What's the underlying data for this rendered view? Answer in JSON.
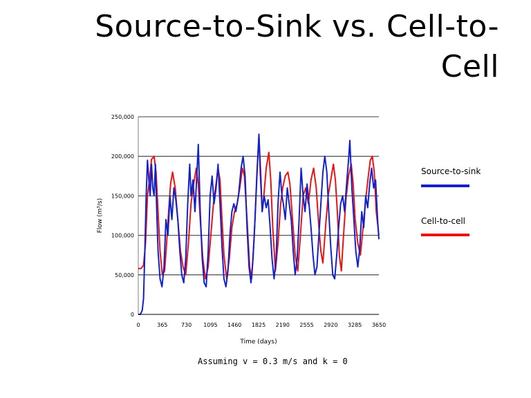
{
  "slide": {
    "title_line1": "Source-to-Sink vs. Cell-to-",
    "title_line2": "Cell",
    "caption": "Assuming v = 0.3 m/s and k = 0"
  },
  "chart_data": {
    "type": "line",
    "title": "",
    "xlabel": "Time (days)",
    "ylabel": "Flow (m³/s)",
    "xlim": [
      0,
      3650
    ],
    "ylim": [
      0,
      250000
    ],
    "x_ticks": [
      0,
      365,
      730,
      1095,
      1460,
      1825,
      2190,
      2555,
      2920,
      3285,
      3650
    ],
    "x_tick_labels": [
      "0",
      "365",
      "730",
      "1095",
      "1460",
      "1825",
      "2190",
      "2555",
      "2920",
      "3285",
      "3650"
    ],
    "y_ticks": [
      0,
      50000,
      100000,
      150000,
      200000,
      250000
    ],
    "y_tick_labels": [
      "0",
      "50,000",
      "100,000",
      "150,000",
      "200,000",
      "250,000"
    ],
    "grid": "horizontal",
    "legend_position": "right",
    "series": [
      {
        "name": "Cell-to-cell",
        "color": "#ee1111",
        "points": [
          [
            0,
            58000
          ],
          [
            40,
            58000
          ],
          [
            80,
            62000
          ],
          [
            110,
            90000
          ],
          [
            140,
            150000
          ],
          [
            170,
            170000
          ],
          [
            200,
            196000
          ],
          [
            240,
            200000
          ],
          [
            270,
            180000
          ],
          [
            300,
            130000
          ],
          [
            330,
            80000
          ],
          [
            365,
            50000
          ],
          [
            400,
            55000
          ],
          [
            430,
            90000
          ],
          [
            460,
            130000
          ],
          [
            490,
            165000
          ],
          [
            520,
            180000
          ],
          [
            560,
            160000
          ],
          [
            600,
            120000
          ],
          [
            640,
            80000
          ],
          [
            680,
            60000
          ],
          [
            720,
            50000
          ],
          [
            760,
            90000
          ],
          [
            800,
            140000
          ],
          [
            840,
            165000
          ],
          [
            880,
            185000
          ],
          [
            910,
            165000
          ],
          [
            940,
            120000
          ],
          [
            980,
            70000
          ],
          [
            1020,
            45000
          ],
          [
            1060,
            60000
          ],
          [
            1100,
            100000
          ],
          [
            1140,
            140000
          ],
          [
            1180,
            165000
          ],
          [
            1210,
            185000
          ],
          [
            1240,
            170000
          ],
          [
            1270,
            120000
          ],
          [
            1300,
            75000
          ],
          [
            1340,
            45000
          ],
          [
            1380,
            70000
          ],
          [
            1420,
            110000
          ],
          [
            1460,
            130000
          ],
          [
            1500,
            140000
          ],
          [
            1540,
            160000
          ],
          [
            1580,
            185000
          ],
          [
            1610,
            175000
          ],
          [
            1650,
            120000
          ],
          [
            1690,
            60000
          ],
          [
            1720,
            45000
          ],
          [
            1760,
            100000
          ],
          [
            1800,
            180000
          ],
          [
            1830,
            225000
          ],
          [
            1860,
            175000
          ],
          [
            1880,
            130000
          ],
          [
            1910,
            155000
          ],
          [
            1940,
            185000
          ],
          [
            1980,
            205000
          ],
          [
            2010,
            170000
          ],
          [
            2040,
            110000
          ],
          [
            2080,
            55000
          ],
          [
            2120,
            90000
          ],
          [
            2160,
            140000
          ],
          [
            2190,
            160000
          ],
          [
            2230,
            175000
          ],
          [
            2270,
            180000
          ],
          [
            2300,
            165000
          ],
          [
            2340,
            120000
          ],
          [
            2380,
            75000
          ],
          [
            2420,
            55000
          ],
          [
            2460,
            100000
          ],
          [
            2500,
            150000
          ],
          [
            2540,
            160000
          ],
          [
            2580,
            140000
          ],
          [
            2620,
            170000
          ],
          [
            2660,
            185000
          ],
          [
            2700,
            160000
          ],
          [
            2740,
            110000
          ],
          [
            2770,
            80000
          ],
          [
            2800,
            65000
          ],
          [
            2840,
            110000
          ],
          [
            2880,
            150000
          ],
          [
            2920,
            170000
          ],
          [
            2960,
            190000
          ],
          [
            2990,
            170000
          ],
          [
            3020,
            130000
          ],
          [
            3050,
            75000
          ],
          [
            3080,
            55000
          ],
          [
            3110,
            95000
          ],
          [
            3150,
            145000
          ],
          [
            3190,
            175000
          ],
          [
            3230,
            190000
          ],
          [
            3260,
            165000
          ],
          [
            3290,
            120000
          ],
          [
            3330,
            90000
          ],
          [
            3370,
            75000
          ],
          [
            3410,
            110000
          ],
          [
            3450,
            145000
          ],
          [
            3490,
            175000
          ],
          [
            3520,
            195000
          ],
          [
            3550,
            200000
          ],
          [
            3580,
            180000
          ],
          [
            3610,
            130000
          ],
          [
            3650,
            100000
          ]
        ]
      },
      {
        "name": "Source-to-sink",
        "color": "#1122cc",
        "points": [
          [
            0,
            0
          ],
          [
            30,
            0
          ],
          [
            60,
            5000
          ],
          [
            80,
            20000
          ],
          [
            100,
            80000
          ],
          [
            120,
            150000
          ],
          [
            140,
            195000
          ],
          [
            160,
            170000
          ],
          [
            180,
            150000
          ],
          [
            200,
            190000
          ],
          [
            220,
            160000
          ],
          [
            240,
            150000
          ],
          [
            260,
            190000
          ],
          [
            280,
            130000
          ],
          [
            300,
            80000
          ],
          [
            330,
            45000
          ],
          [
            360,
            35000
          ],
          [
            390,
            60000
          ],
          [
            420,
            120000
          ],
          [
            450,
            100000
          ],
          [
            480,
            150000
          ],
          [
            510,
            120000
          ],
          [
            540,
            160000
          ],
          [
            570,
            145000
          ],
          [
            600,
            120000
          ],
          [
            630,
            80000
          ],
          [
            660,
            50000
          ],
          [
            690,
            40000
          ],
          [
            720,
            70000
          ],
          [
            750,
            140000
          ],
          [
            780,
            190000
          ],
          [
            800,
            150000
          ],
          [
            830,
            170000
          ],
          [
            860,
            130000
          ],
          [
            890,
            180000
          ],
          [
            910,
            215000
          ],
          [
            940,
            130000
          ],
          [
            970,
            70000
          ],
          [
            1000,
            40000
          ],
          [
            1030,
            35000
          ],
          [
            1060,
            80000
          ],
          [
            1090,
            150000
          ],
          [
            1120,
            175000
          ],
          [
            1150,
            140000
          ],
          [
            1180,
            160000
          ],
          [
            1210,
            190000
          ],
          [
            1240,
            140000
          ],
          [
            1270,
            85000
          ],
          [
            1300,
            45000
          ],
          [
            1330,
            35000
          ],
          [
            1360,
            55000
          ],
          [
            1390,
            100000
          ],
          [
            1420,
            130000
          ],
          [
            1450,
            140000
          ],
          [
            1480,
            130000
          ],
          [
            1520,
            150000
          ],
          [
            1560,
            185000
          ],
          [
            1590,
            200000
          ],
          [
            1620,
            175000
          ],
          [
            1650,
            110000
          ],
          [
            1680,
            60000
          ],
          [
            1710,
            40000
          ],
          [
            1740,
            70000
          ],
          [
            1770,
            120000
          ],
          [
            1800,
            175000
          ],
          [
            1830,
            228000
          ],
          [
            1850,
            180000
          ],
          [
            1880,
            130000
          ],
          [
            1910,
            150000
          ],
          [
            1940,
            135000
          ],
          [
            1970,
            145000
          ],
          [
            2000,
            110000
          ],
          [
            2030,
            70000
          ],
          [
            2060,
            45000
          ],
          [
            2090,
            70000
          ],
          [
            2120,
            140000
          ],
          [
            2150,
            180000
          ],
          [
            2180,
            150000
          ],
          [
            2200,
            140000
          ],
          [
            2230,
            120000
          ],
          [
            2260,
            160000
          ],
          [
            2290,
            140000
          ],
          [
            2320,
            120000
          ],
          [
            2350,
            80000
          ],
          [
            2380,
            50000
          ],
          [
            2410,
            70000
          ],
          [
            2440,
            120000
          ],
          [
            2470,
            185000
          ],
          [
            2500,
            150000
          ],
          [
            2530,
            130000
          ],
          [
            2560,
            165000
          ],
          [
            2590,
            140000
          ],
          [
            2620,
            110000
          ],
          [
            2650,
            75000
          ],
          [
            2680,
            50000
          ],
          [
            2710,
            60000
          ],
          [
            2740,
            100000
          ],
          [
            2770,
            140000
          ],
          [
            2800,
            180000
          ],
          [
            2830,
            200000
          ],
          [
            2860,
            180000
          ],
          [
            2890,
            130000
          ],
          [
            2920,
            85000
          ],
          [
            2950,
            50000
          ],
          [
            2980,
            45000
          ],
          [
            3010,
            75000
          ],
          [
            3040,
            110000
          ],
          [
            3070,
            140000
          ],
          [
            3100,
            150000
          ],
          [
            3130,
            130000
          ],
          [
            3160,
            165000
          ],
          [
            3190,
            195000
          ],
          [
            3210,
            220000
          ],
          [
            3240,
            160000
          ],
          [
            3270,
            120000
          ],
          [
            3300,
            80000
          ],
          [
            3330,
            60000
          ],
          [
            3360,
            85000
          ],
          [
            3390,
            130000
          ],
          [
            3420,
            110000
          ],
          [
            3450,
            150000
          ],
          [
            3480,
            135000
          ],
          [
            3510,
            165000
          ],
          [
            3540,
            185000
          ],
          [
            3570,
            160000
          ],
          [
            3600,
            170000
          ],
          [
            3630,
            120000
          ],
          [
            3650,
            95000
          ]
        ]
      }
    ],
    "legend": [
      {
        "name": "Source-to-sink",
        "color": "#1122cc"
      },
      {
        "name": "Cell-to-cell",
        "color": "#ee1111"
      }
    ]
  }
}
